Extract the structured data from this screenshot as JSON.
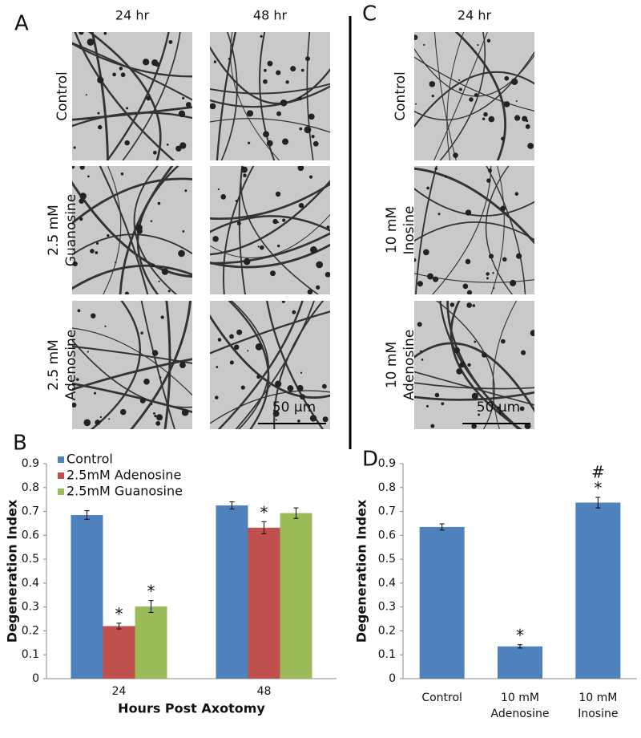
{
  "panel_labels": [
    "A",
    "B",
    "C",
    "D"
  ],
  "micrographs": {
    "A": {
      "columns": [
        "24 hr",
        "48 hr"
      ],
      "rows": [
        [
          "Control"
        ],
        [
          "2.5 mM",
          "Guanosine"
        ],
        [
          "2.5 mM",
          "Adenosine"
        ]
      ],
      "scale_bar": "50 μm"
    },
    "C": {
      "columns": [
        "24 hr"
      ],
      "rows": [
        [
          "Control"
        ],
        [
          "10 mM",
          "Inosine"
        ],
        [
          "10 mM",
          "Adenosine"
        ]
      ],
      "scale_bar": "50 μm"
    }
  },
  "chart_data": [
    {
      "type": "grouped-bar",
      "x_label": "Hours Post Axotomy",
      "y_label": "Degeneration Index",
      "categories": [
        "24",
        "48"
      ],
      "series": [
        {
          "name": "Control",
          "color": "#4f81bd",
          "values": [
            0.685,
            0.725
          ],
          "errors": [
            0.018,
            0.015
          ],
          "markers": [
            null,
            null
          ]
        },
        {
          "name": "2.5mM Adenosine",
          "color": "#c0504d",
          "values": [
            0.22,
            0.632
          ],
          "errors": [
            0.012,
            0.025
          ],
          "markers": [
            "*",
            "*"
          ]
        },
        {
          "name": "2.5mM Guanosine",
          "color": "#9bbb59",
          "values": [
            0.302,
            0.693
          ],
          "errors": [
            0.025,
            0.022
          ],
          "markers": [
            "*",
            null
          ]
        }
      ],
      "ylim": [
        0,
        0.9
      ],
      "yticks": [
        0,
        0.1,
        0.2,
        0.3,
        0.4,
        0.5,
        0.6,
        0.7,
        0.8,
        0.9
      ],
      "legend": "top-left"
    },
    {
      "type": "bar",
      "y_label": "Degeneration Index",
      "categories": [
        "Control",
        "10 mM Adenosine",
        "10 mM Inosine"
      ],
      "values": [
        0.635,
        0.135,
        0.737
      ],
      "errors": [
        0.013,
        0.007,
        0.022
      ],
      "color": "#4f81bd",
      "markers": [
        null,
        "*",
        "*"
      ],
      "markers2": [
        null,
        null,
        "#"
      ],
      "ylim": [
        0,
        0.9
      ],
      "yticks": [
        0,
        0.1,
        0.2,
        0.3,
        0.4,
        0.5,
        0.6,
        0.7,
        0.8,
        0.9
      ]
    }
  ]
}
